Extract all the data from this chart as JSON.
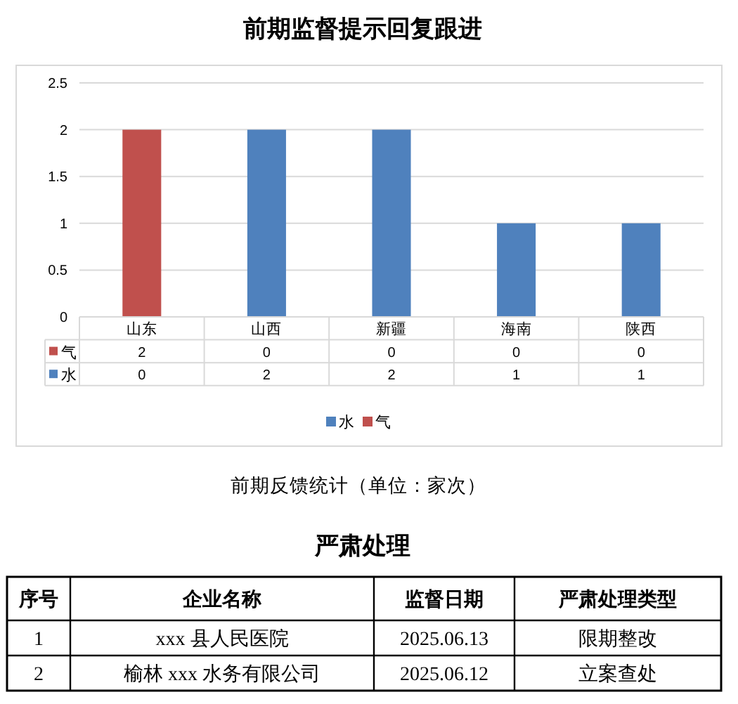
{
  "chart_data": [
    {
      "type": "bar",
      "title": "前期监督提示回复跟进",
      "categories": [
        "山东",
        "山西",
        "新疆",
        "海南",
        "陕西"
      ],
      "series": [
        {
          "name": "水",
          "color": "#4f81bd",
          "values": [
            0,
            2,
            2,
            1,
            1
          ]
        },
        {
          "name": "气",
          "color": "#c0504d",
          "values": [
            2,
            0,
            0,
            0,
            0
          ]
        }
      ],
      "stacked": true,
      "ylim": [
        0,
        2.5
      ],
      "yticks": [
        0,
        0.5,
        1,
        1.5,
        2,
        2.5
      ],
      "grid": "y",
      "legend": "bottom",
      "data_labels": true,
      "annotations": [
        "前期反馈统计（单位：家次）"
      ]
    },
    {
      "type": "other",
      "title": "严肃处理",
      "categories": [
        "序号",
        "企业名称",
        "监督日期",
        "严肃处理类型"
      ],
      "annotations": [
        "1",
        "xxx 县人民医院",
        "2025.06.13",
        "限期整改",
        "2",
        "榆林 xxx 水务有限公司",
        "2025.06.12",
        "立案查处"
      ]
    }
  ]
}
